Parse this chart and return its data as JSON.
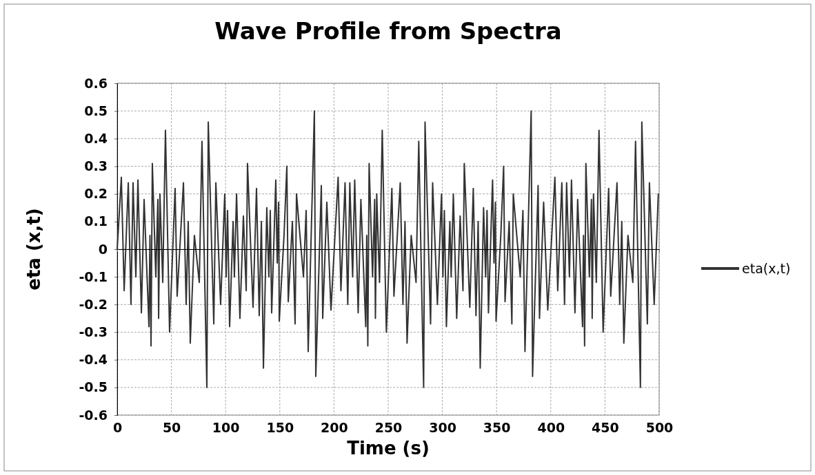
{
  "chart_data": {
    "type": "line",
    "title": "Wave Profile from Spectra",
    "xlabel": "Time (s)",
    "ylabel": "eta (x,t)",
    "xlim": [
      0,
      500
    ],
    "xticks": [
      0,
      50,
      100,
      150,
      200,
      250,
      300,
      350,
      400,
      450,
      500
    ],
    "ylim": [
      -0.6,
      0.6
    ],
    "yticks": [
      -0.6,
      -0.5,
      -0.4,
      -0.3,
      -0.2,
      -0.1,
      0,
      0.1,
      0.2,
      0.3,
      0.4,
      0.5,
      0.6
    ],
    "grid": true,
    "legend": "right",
    "marker": "none",
    "line_style": "solid",
    "series": [
      {
        "name": "eta(x,t)",
        "color": "#333333",
        "x": [
          0,
          3.8,
          6.4,
          10.2,
          12.7,
          14.6,
          17.2,
          19.1,
          22.3,
          24.8,
          29.3,
          30.2,
          31.2,
          32.4,
          35.6,
          37.5,
          38.2,
          39.4,
          42.0,
          44.5,
          48.3,
          53.4,
          55.3,
          61.1,
          63.6,
          65.5,
          67.4,
          71.2,
          75.7,
          78.2,
          82.7,
          84.0,
          89.1,
          91.0,
          95.4,
          99.2,
          100.5,
          101.8,
          103.7,
          106.9,
          108.1,
          110.1,
          113.2,
          116.4,
          119.0,
          120.2,
          125.3,
          128.5,
          131.0,
          133.0,
          134.9,
          138.0,
          139.9,
          141.2,
          142.5,
          146.3,
          147.6,
          148.9,
          149.5,
          153.9,
          156.5,
          157.8,
          161.6,
          164.1,
          165.4,
          171.8,
          174.3,
          176.2,
          181.9,
          183.2,
          188.3,
          189.6,
          193.4,
          197.2,
          203.8,
          206.4,
          210.2,
          212.7,
          214.6,
          217.2,
          219.1,
          222.3,
          224.8,
          229.3,
          230.2,
          231.2,
          232.4,
          235.6,
          237.5,
          238.2,
          239.4,
          242.0,
          244.5,
          248.3,
          253.4,
          255.3,
          261.1,
          263.6,
          265.5,
          267.4,
          271.2,
          275.7,
          278.2,
          282.7,
          284.0,
          289.1,
          291.0,
          295.4,
          299.2,
          300.5,
          301.8,
          303.7,
          306.9,
          308.1,
          310.1,
          313.2,
          316.4,
          319.0,
          320.2,
          325.3,
          328.5,
          331.0,
          333.0,
          334.9,
          338.0,
          339.9,
          341.2,
          342.5,
          346.3,
          347.6,
          348.9,
          349.5,
          353.9,
          356.5,
          357.8,
          361.6,
          364.1,
          365.4,
          371.8,
          374.3,
          376.2,
          381.9,
          383.2,
          388.3,
          389.6,
          393.4,
          397.2,
          403.8,
          406.4,
          410.2,
          412.7,
          414.6,
          417.2,
          419.1,
          422.3,
          424.8,
          429.3,
          430.2,
          431.2,
          432.4,
          435.6,
          437.5,
          438.2,
          439.4,
          442.0,
          444.5,
          448.3,
          453.4,
          455.3,
          461.1,
          463.6,
          465.5,
          467.4,
          471.2,
          475.7,
          478.2,
          482.7,
          484.0,
          489.1,
          491.0,
          495.4,
          499.2
        ],
        "values": [
          0,
          0.26,
          -0.15,
          0.24,
          -0.2,
          0.24,
          -0.1,
          0.25,
          -0.23,
          0.18,
          -0.28,
          0.05,
          -0.35,
          0.31,
          -0.1,
          0.18,
          -0.25,
          0.2,
          -0.12,
          0.43,
          -0.3,
          0.22,
          -0.17,
          0.24,
          -0.2,
          0.1,
          -0.34,
          0.05,
          -0.12,
          0.39,
          -0.5,
          0.46,
          -0.27,
          0.24,
          -0.2,
          0.2,
          -0.1,
          0.14,
          -0.28,
          0.1,
          -0.1,
          0.2,
          -0.25,
          0.12,
          -0.15,
          0.31,
          -0.21,
          0.22,
          -0.24,
          0.1,
          -0.43,
          0.15,
          -0.1,
          0.14,
          -0.23,
          0.25,
          -0.05,
          0.17,
          -0.26,
          0.05,
          0.3,
          -0.19,
          0.1,
          -0.27,
          0.2,
          -0.1,
          0.14,
          -0.37,
          0.5,
          -0.46,
          0.23,
          -0.25,
          0.17,
          -0.22,
          0.26,
          -0.15,
          0.24,
          -0.2,
          0.24,
          -0.1,
          0.25,
          -0.23,
          0.18,
          -0.28,
          0.05,
          -0.35,
          0.31,
          -0.1,
          0.18,
          -0.25,
          0.2,
          -0.12,
          0.43,
          -0.3,
          0.22,
          -0.17,
          0.24,
          -0.2,
          0.1,
          -0.34,
          0.05,
          -0.12,
          0.39,
          -0.5,
          0.46,
          -0.27,
          0.24,
          -0.2,
          0.2,
          -0.1,
          0.14,
          -0.28,
          0.1,
          -0.1,
          0.2,
          -0.25,
          0.12,
          -0.15,
          0.31,
          -0.21,
          0.22,
          -0.24,
          0.1,
          -0.43,
          0.15,
          -0.1,
          0.14,
          -0.23,
          0.25,
          -0.05,
          0.17,
          -0.26,
          0.05,
          0.3,
          -0.19,
          0.1,
          -0.27,
          0.2,
          -0.1,
          0.14,
          -0.37,
          0.5,
          -0.46,
          0.23,
          -0.25,
          0.17,
          -0.22,
          0.26,
          -0.15,
          0.24,
          -0.2,
          0.24,
          -0.1,
          0.25,
          -0.23,
          0.18,
          -0.28,
          0.05,
          -0.35,
          0.31,
          -0.1,
          0.18,
          -0.25,
          0.2,
          -0.12,
          0.43,
          -0.3,
          0.22,
          -0.17,
          0.24,
          -0.2,
          0.1,
          -0.34,
          0.05,
          -0.12,
          0.39,
          -0.5,
          0.46,
          -0.27,
          0.24,
          -0.2,
          0.2
        ]
      }
    ]
  }
}
